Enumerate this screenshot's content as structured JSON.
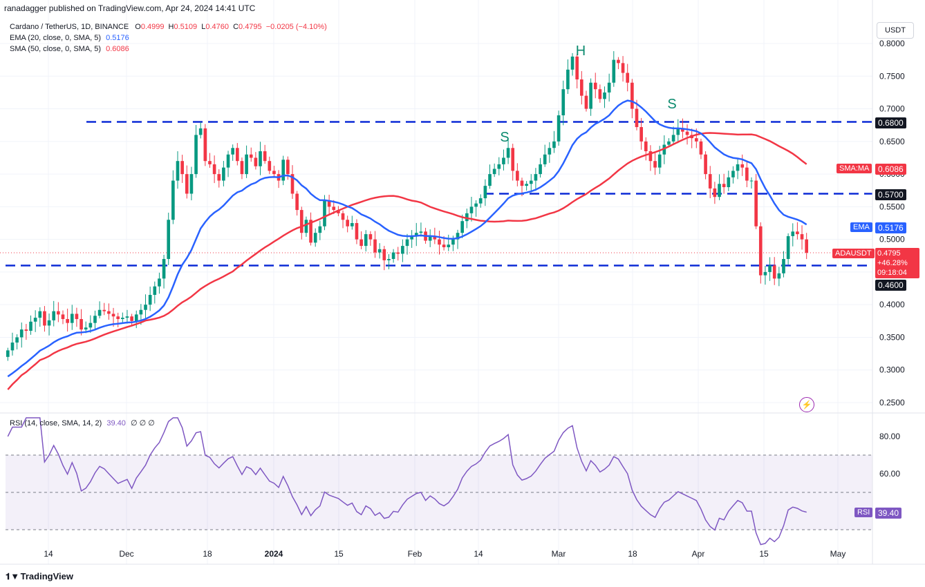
{
  "header": {
    "published": "ranadagger published on TradingView.com, Apr 24, 2024 14:41 UTC"
  },
  "legend": {
    "symbol": "Cardano / TetherUS, 1D, BINANCE",
    "ohlc": {
      "O": "0.4999",
      "H": "0.5109",
      "L": "0.4760",
      "C": "0.4795",
      "change": "−0.0205 (−4.10%)"
    },
    "ema": {
      "label": "EMA (20, close, 0, SMA, 5)",
      "value": "0.5176",
      "color": "#2962ff"
    },
    "sma": {
      "label": "SMA (50, close, 0, SMA, 5)",
      "value": "0.6086",
      "color": "#f23645"
    },
    "rsi": {
      "label": "RSI (14, close, SMA, 14, 2)",
      "value": "39.40",
      "extras": "∅ ∅ ∅",
      "color": "#7e57c2"
    }
  },
  "currency_button": "USDT",
  "badges": {
    "sma_ma": {
      "name": "SMA:MA",
      "value": "0.6086"
    },
    "ema": {
      "name": "EMA",
      "value": "0.5176"
    },
    "symbol": {
      "name": "ADAUSDT",
      "value": "0.4795",
      "change": "+46.28%",
      "countdown": "09:18:04"
    },
    "rsi": {
      "name": "RSI",
      "value": "39.40"
    },
    "level_0680": "0.6800",
    "level_0570": "0.5700",
    "level_0460": "0.4600"
  },
  "pattern_labels": [
    "S",
    "H",
    "S"
  ],
  "footer": {
    "brand": "TradingView"
  },
  "chart_data": {
    "type": "candlestick",
    "title": "Cardano / TetherUS, 1D, BINANCE",
    "price_axis": {
      "ticks": [
        "0.8000",
        "0.7500",
        "0.7000",
        "0.6500",
        "0.6000",
        "0.5500",
        "0.5000",
        "0.4500",
        "0.4000",
        "0.3500",
        "0.3000",
        "0.2500"
      ],
      "ylim": [
        0.23,
        0.82
      ]
    },
    "rsi_axis": {
      "ticks": [
        "80.00",
        "60.00"
      ],
      "ylim": [
        20,
        92
      ],
      "upper": 70,
      "lower": 30
    },
    "x_ticks": [
      "14",
      "Dec",
      "18",
      "2024",
      "15",
      "Feb",
      "14",
      "Mar",
      "18",
      "Apr",
      "15",
      "May"
    ],
    "horizontal_levels": [
      0.68,
      0.57,
      0.46
    ],
    "pattern": "head and shoulders",
    "closes": [
      0.33,
      0.342,
      0.35,
      0.362,
      0.36,
      0.374,
      0.38,
      0.39,
      0.368,
      0.376,
      0.39,
      0.385,
      0.378,
      0.372,
      0.386,
      0.378,
      0.362,
      0.365,
      0.372,
      0.383,
      0.392,
      0.39,
      0.386,
      0.382,
      0.378,
      0.38,
      0.382,
      0.375,
      0.385,
      0.392,
      0.4,
      0.415,
      0.428,
      0.44,
      0.47,
      0.53,
      0.59,
      0.62,
      0.6,
      0.57,
      0.6,
      0.66,
      0.67,
      0.62,
      0.615,
      0.6,
      0.59,
      0.61,
      0.63,
      0.64,
      0.62,
      0.6,
      0.63,
      0.625,
      0.612,
      0.635,
      0.62,
      0.605,
      0.6,
      0.59,
      0.622,
      0.6,
      0.57,
      0.545,
      0.51,
      0.53,
      0.495,
      0.51,
      0.52,
      0.56,
      0.55,
      0.545,
      0.54,
      0.53,
      0.52,
      0.525,
      0.5,
      0.49,
      0.508,
      0.5,
      0.48,
      0.485,
      0.468,
      0.47,
      0.48,
      0.478,
      0.49,
      0.5,
      0.505,
      0.51,
      0.512,
      0.498,
      0.505,
      0.5,
      0.492,
      0.488,
      0.492,
      0.5,
      0.51,
      0.528,
      0.54,
      0.55,
      0.555,
      0.563,
      0.582,
      0.6,
      0.608,
      0.615,
      0.625,
      0.64,
      0.605,
      0.59,
      0.582,
      0.585,
      0.59,
      0.6,
      0.615,
      0.63,
      0.64,
      0.65,
      0.69,
      0.73,
      0.76,
      0.78,
      0.745,
      0.72,
      0.7,
      0.74,
      0.73,
      0.715,
      0.725,
      0.74,
      0.775,
      0.77,
      0.755,
      0.74,
      0.7,
      0.672,
      0.65,
      0.635,
      0.62,
      0.61,
      0.63,
      0.645,
      0.65,
      0.66,
      0.67,
      0.665,
      0.66,
      0.655,
      0.65,
      0.63,
      0.6,
      0.578,
      0.565,
      0.585,
      0.58,
      0.595,
      0.605,
      0.615,
      0.61,
      0.59,
      0.59,
      0.52,
      0.445,
      0.45,
      0.46,
      0.44,
      0.448,
      0.47,
      0.505,
      0.512,
      0.508,
      0.5,
      0.4795
    ],
    "ema20": {
      "name": "EMA",
      "value": 0.5176
    },
    "sma50": {
      "name": "SMA",
      "value": 0.6086
    },
    "rsi_last": 39.4
  }
}
